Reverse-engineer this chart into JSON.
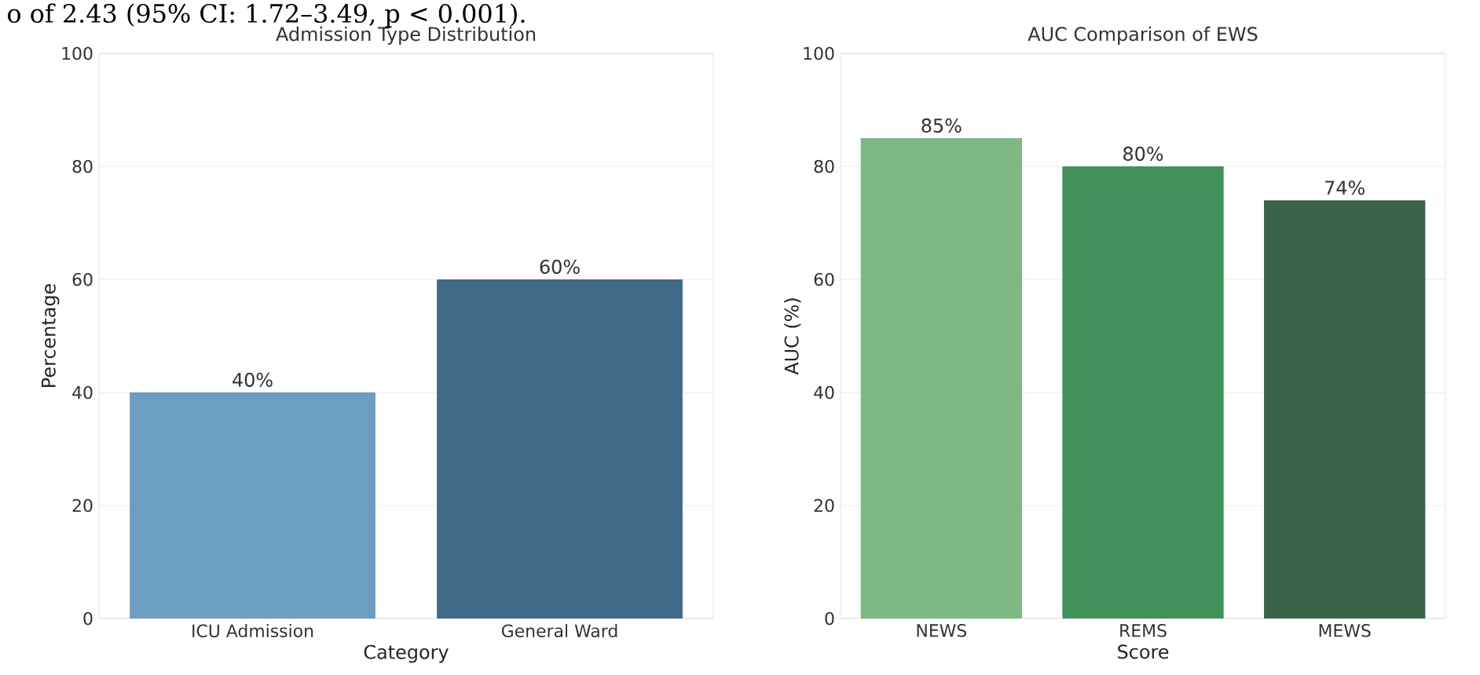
{
  "chart_data": [
    {
      "type": "bar",
      "title": "Admission Type Distribution",
      "xlabel": "Category",
      "ylabel": "Percentage",
      "categories": [
        "ICU Admission",
        "General Ward"
      ],
      "values": [
        40,
        60
      ],
      "value_labels": [
        "40%",
        "60%"
      ],
      "colors": [
        "#6b9ec2",
        "#406a88"
      ],
      "ylim": [
        0,
        100
      ],
      "yticks": [
        0,
        20,
        40,
        60,
        80,
        100
      ],
      "grid": "y",
      "annotations": [
        "o of 2.43 (95% CI: 1.72–3.49, p < 0.001)."
      ]
    },
    {
      "type": "bar",
      "title": "AUC Comparison of EWS",
      "xlabel": "Score",
      "ylabel": "AUC (%)",
      "categories": [
        "NEWS",
        "REMS",
        "MEWS"
      ],
      "values": [
        85,
        80,
        74
      ],
      "value_labels": [
        "85%",
        "80%",
        "74%"
      ],
      "colors": [
        "#7eb983",
        "#42915a",
        "#3a6449"
      ],
      "ylim": [
        0,
        100
      ],
      "yticks": [
        0,
        20,
        40,
        60,
        80,
        100
      ],
      "grid": "y"
    }
  ]
}
